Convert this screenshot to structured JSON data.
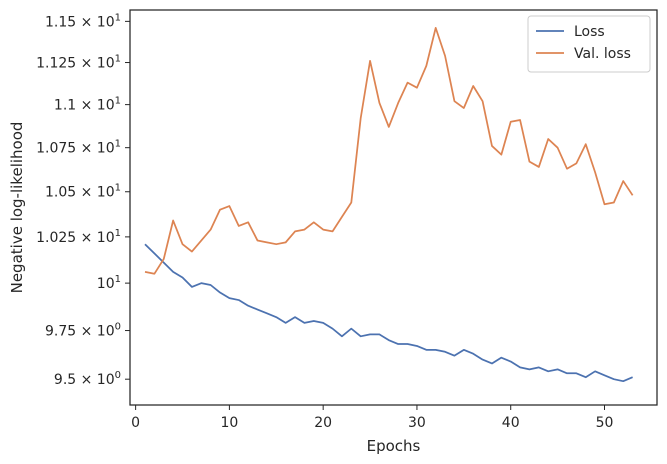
{
  "chart_data": {
    "type": "line",
    "xlabel": "Epochs",
    "ylabel": "Negative log-likelihood",
    "xlim": [
      -0.6,
      55.6
    ],
    "ylim": [
      9.37,
      11.57
    ],
    "yscale": "log",
    "grid": false,
    "legend_position": "top-right",
    "x_ticks": [
      0,
      10,
      20,
      30,
      40,
      50
    ],
    "x_tick_labels": [
      "0",
      "10",
      "20",
      "30",
      "40",
      "50"
    ],
    "y_ticks": [
      9.5,
      9.75,
      10,
      10.25,
      10.5,
      10.75,
      11,
      11.25,
      11.5
    ],
    "y_tick_labels": [
      {
        "base": "9.5",
        "exp": "0",
        "times": true
      },
      {
        "base": "9.75",
        "exp": "0",
        "times": true
      },
      {
        "base": "10",
        "exp": "1",
        "times": false
      },
      {
        "base": "1.025",
        "exp": "1",
        "times": true
      },
      {
        "base": "1.05",
        "exp": "1",
        "times": true
      },
      {
        "base": "1.075",
        "exp": "1",
        "times": true
      },
      {
        "base": "1.1",
        "exp": "1",
        "times": true
      },
      {
        "base": "1.125",
        "exp": "1",
        "times": true
      },
      {
        "base": "1.15",
        "exp": "1",
        "times": true
      }
    ],
    "x": [
      1,
      2,
      3,
      4,
      5,
      6,
      7,
      8,
      9,
      10,
      11,
      12,
      13,
      14,
      15,
      16,
      17,
      18,
      19,
      20,
      21,
      22,
      23,
      24,
      25,
      26,
      27,
      28,
      29,
      30,
      31,
      32,
      33,
      34,
      35,
      36,
      37,
      38,
      39,
      40,
      41,
      42,
      43,
      44,
      45,
      46,
      47,
      48,
      49,
      50,
      51,
      52,
      53
    ],
    "series": [
      {
        "name": "Loss",
        "color": "#4c72b0",
        "values": [
          10.21,
          10.16,
          10.11,
          10.06,
          10.03,
          9.98,
          10.0,
          9.99,
          9.95,
          9.92,
          9.91,
          9.88,
          9.86,
          9.84,
          9.82,
          9.79,
          9.82,
          9.79,
          9.8,
          9.79,
          9.76,
          9.72,
          9.76,
          9.72,
          9.73,
          9.73,
          9.7,
          9.68,
          9.68,
          9.67,
          9.65,
          9.65,
          9.64,
          9.62,
          9.65,
          9.63,
          9.6,
          9.58,
          9.61,
          9.59,
          9.56,
          9.55,
          9.56,
          9.54,
          9.55,
          9.53,
          9.53,
          9.51,
          9.54,
          9.52,
          9.5,
          9.49,
          9.51
        ]
      },
      {
        "name": "Val. loss",
        "color": "#dd8452",
        "values": [
          10.06,
          10.05,
          10.13,
          10.34,
          10.21,
          10.17,
          10.23,
          10.29,
          10.4,
          10.42,
          10.31,
          10.33,
          10.23,
          10.22,
          10.21,
          10.22,
          10.28,
          10.29,
          10.33,
          10.29,
          10.28,
          10.36,
          10.44,
          10.92,
          11.26,
          11.01,
          10.87,
          11.01,
          11.13,
          11.1,
          11.23,
          11.46,
          11.29,
          11.02,
          10.98,
          11.11,
          11.02,
          10.76,
          10.71,
          10.9,
          10.91,
          10.67,
          10.64,
          10.8,
          10.75,
          10.63,
          10.66,
          10.77,
          10.61,
          10.43,
          10.44,
          10.56,
          10.48
        ]
      }
    ]
  }
}
